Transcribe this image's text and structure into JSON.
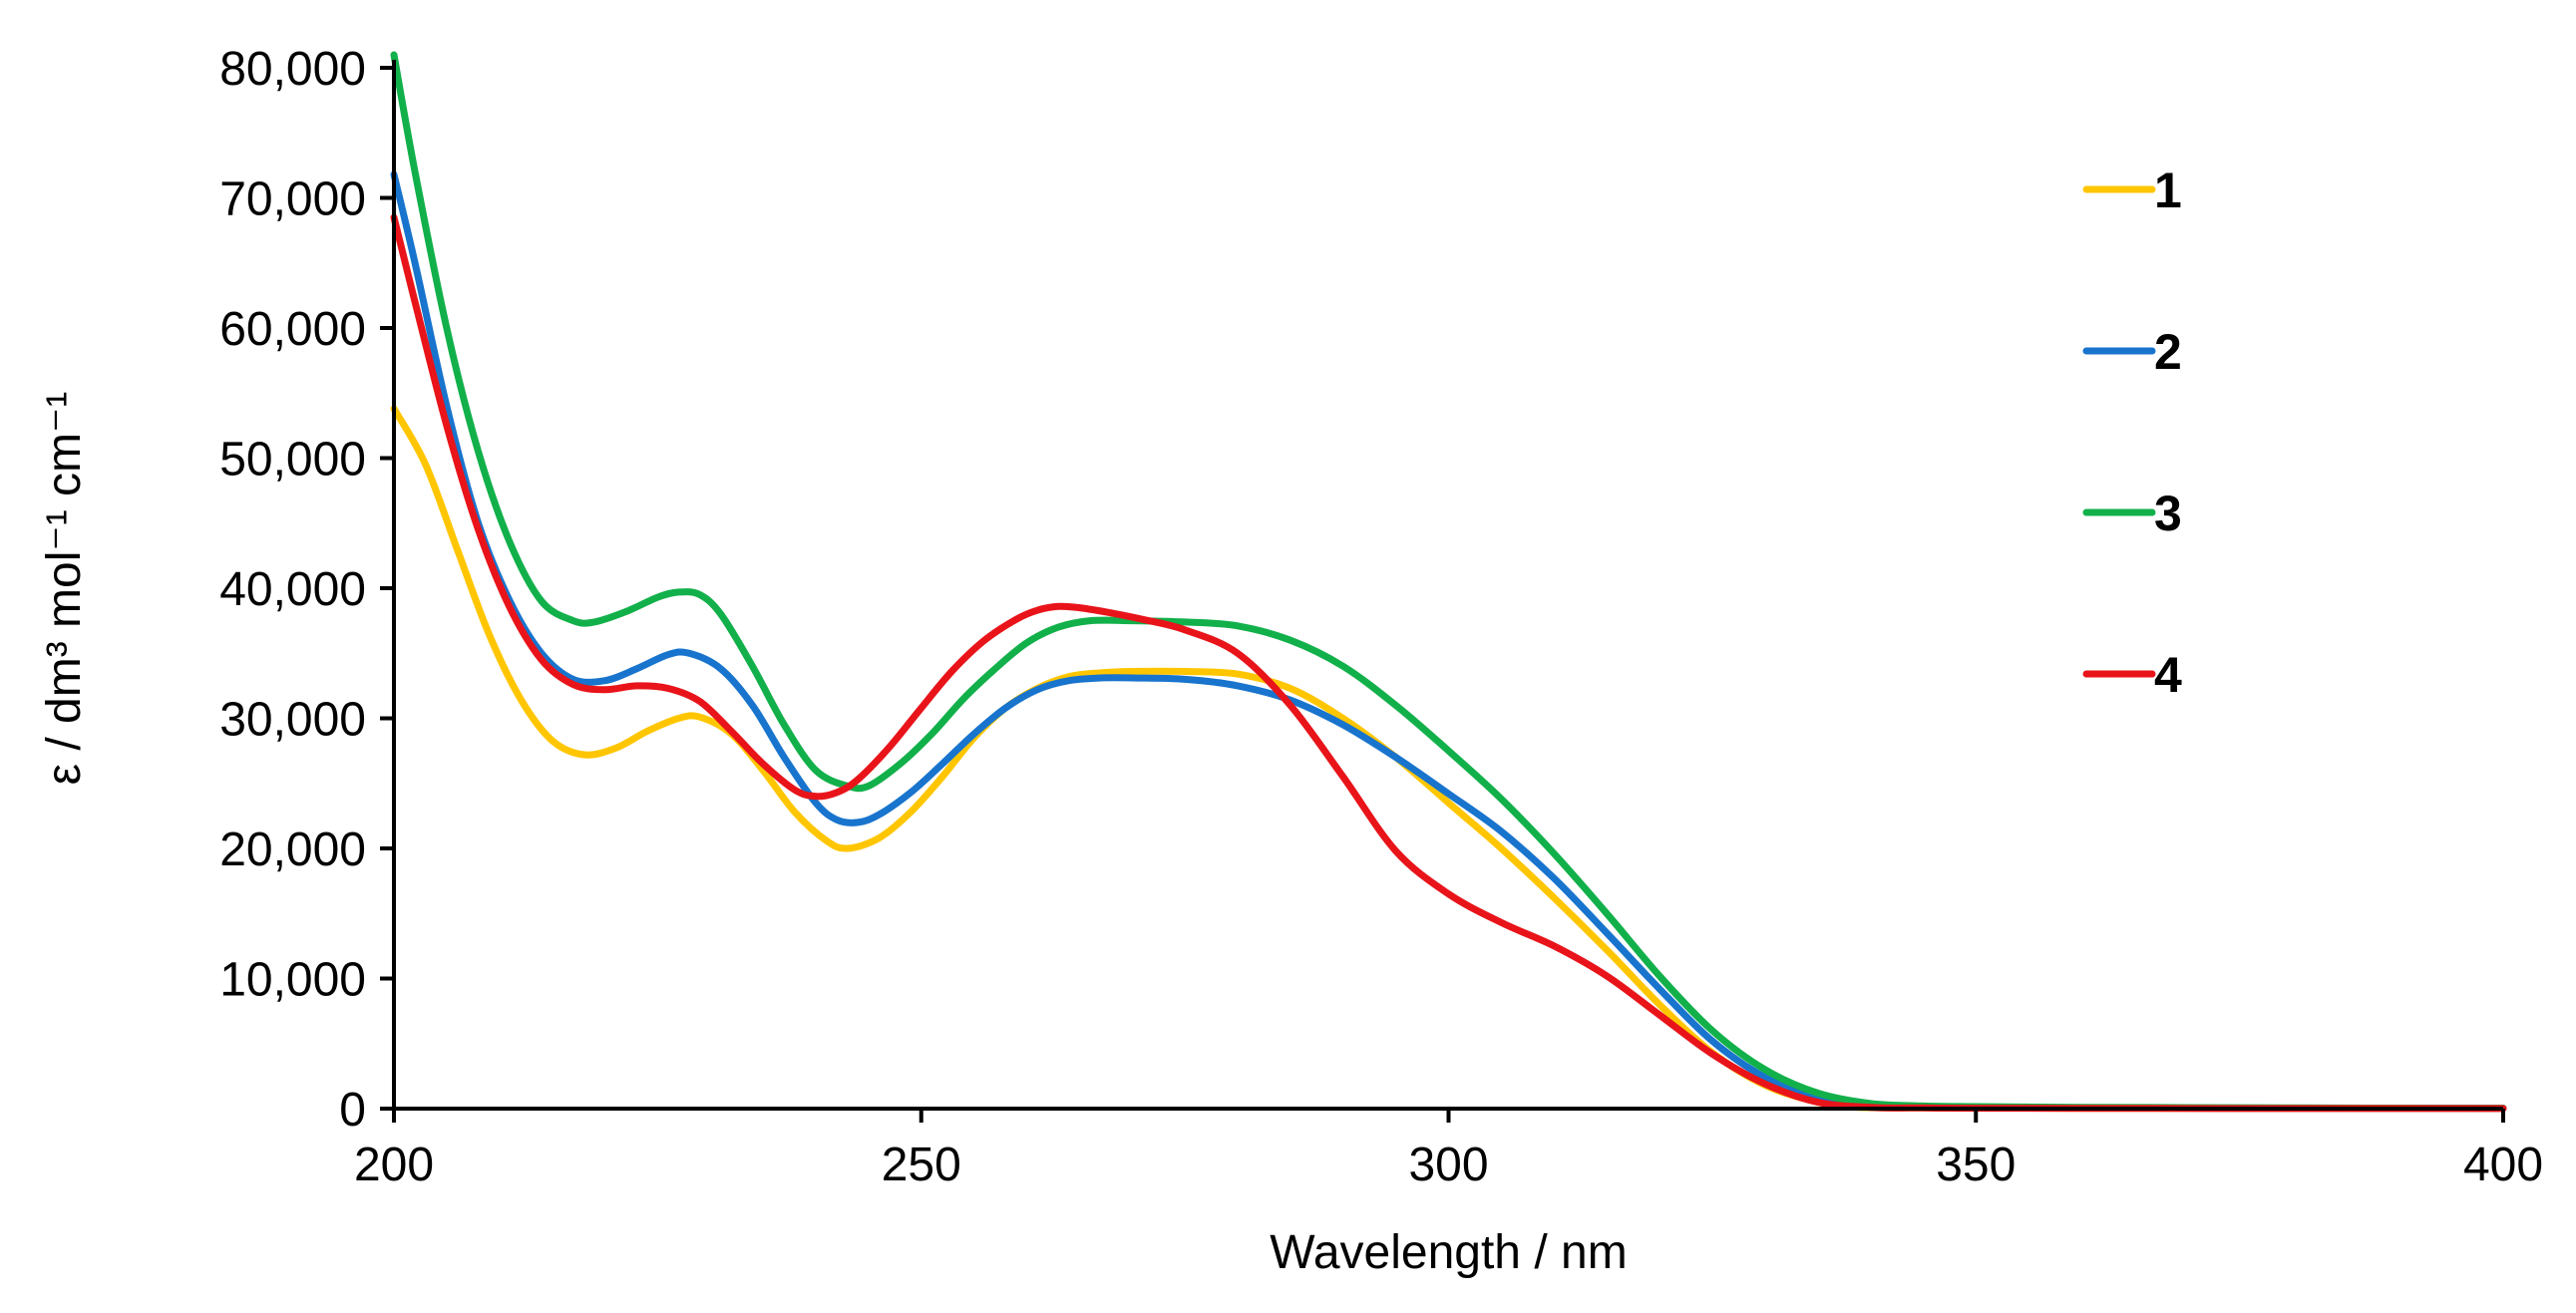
{
  "chart_data": {
    "type": "line",
    "title": "",
    "xlabel": "Wavelength / nm",
    "ylabel": "ε / dm³ mol⁻¹ cm⁻¹",
    "xlim": [
      200,
      400
    ],
    "ylim": [
      0,
      80000
    ],
    "xticks": [
      200,
      250,
      300,
      350,
      400
    ],
    "yticks": [
      0,
      10000,
      20000,
      30000,
      40000,
      50000,
      60000,
      70000,
      80000
    ],
    "xtick_labels": [
      "200",
      "250",
      "300",
      "350",
      "400"
    ],
    "ytick_labels": [
      "0",
      "10,000",
      "20,000",
      "30,000",
      "40,000",
      "50,000",
      "60,000",
      "70,000",
      "80,000"
    ],
    "grid": false,
    "legend_position": "top-right",
    "series": [
      {
        "name": "1",
        "color": "#FFC600",
        "x": [
          200,
          203,
          206,
          209,
          212,
          215,
          218,
          221,
          224,
          227,
          229,
          232,
          235,
          238,
          241,
          243,
          246,
          249,
          252,
          255,
          258,
          261,
          264,
          267,
          270,
          275,
          280,
          285,
          290,
          295,
          300,
          305,
          310,
          315,
          320,
          325,
          330,
          335,
          338,
          340,
          345,
          350,
          360,
          380,
          400
        ],
        "y": [
          53800,
          49500,
          43000,
          36500,
          31500,
          28300,
          27200,
          27700,
          29000,
          30000,
          30100,
          28800,
          26000,
          22800,
          20600,
          20000,
          20800,
          22800,
          25500,
          28500,
          30800,
          32300,
          33200,
          33500,
          33600,
          33600,
          33400,
          32300,
          30000,
          27000,
          23500,
          20000,
          16200,
          12200,
          8000,
          4300,
          1800,
          500,
          150,
          80,
          50,
          40,
          30,
          30,
          30
        ]
      },
      {
        "name": "2",
        "color": "#1874CD",
        "x": [
          200,
          202,
          205,
          208,
          211,
          214,
          217,
          220,
          223,
          226,
          228,
          231,
          234,
          237,
          240,
          242,
          244,
          246,
          249,
          252,
          255,
          258,
          261,
          264,
          267,
          270,
          275,
          280,
          285,
          290,
          295,
          300,
          305,
          310,
          315,
          320,
          325,
          330,
          335,
          340,
          345,
          350,
          360,
          380,
          400
        ],
        "y": [
          71800,
          65000,
          54000,
          45000,
          39000,
          35000,
          33000,
          32900,
          33800,
          34900,
          35000,
          33800,
          31000,
          27000,
          23500,
          22200,
          22000,
          22600,
          24300,
          26500,
          28800,
          30800,
          32200,
          32900,
          33100,
          33100,
          33000,
          32500,
          31400,
          29500,
          27000,
          24200,
          21300,
          17700,
          13500,
          9200,
          5200,
          2400,
          800,
          200,
          100,
          80,
          50,
          40,
          30
        ]
      },
      {
        "name": "3",
        "color": "#12B04A",
        "x": [
          200,
          202,
          205,
          208,
          211,
          214,
          217,
          219,
          222,
          225,
          227,
          229,
          231,
          234,
          237,
          240,
          243,
          245,
          248,
          251,
          254,
          257,
          260,
          263,
          266,
          270,
          275,
          280,
          285,
          290,
          295,
          300,
          305,
          310,
          315,
          320,
          325,
          330,
          335,
          340,
          345,
          350,
          360,
          380,
          400
        ],
        "y": [
          81000,
          72000,
          60000,
          50500,
          43500,
          39000,
          37500,
          37400,
          38200,
          39300,
          39700,
          39500,
          38000,
          34000,
          29500,
          26000,
          24800,
          24800,
          26500,
          28800,
          31500,
          33800,
          35800,
          37000,
          37500,
          37500,
          37400,
          37100,
          36000,
          34000,
          31000,
          27500,
          23800,
          19600,
          15000,
          10200,
          6000,
          3000,
          1200,
          400,
          200,
          150,
          100,
          50,
          30
        ]
      },
      {
        "name": "4",
        "color": "#E8141A",
        "x": [
          200,
          202,
          205,
          208,
          211,
          214,
          217,
          220,
          223,
          226,
          229,
          232,
          235,
          238,
          240,
          242,
          244,
          247,
          250,
          253,
          256,
          259,
          261,
          263,
          265,
          268,
          271,
          275,
          280,
          285,
          290,
          295,
          300,
          305,
          310,
          315,
          320,
          325,
          330,
          335,
          340,
          345,
          350,
          360,
          380,
          400
        ],
        "y": [
          68500,
          62000,
          52500,
          44500,
          38500,
          34500,
          32600,
          32200,
          32500,
          32300,
          31300,
          29000,
          26500,
          24500,
          24000,
          24300,
          25300,
          27800,
          30800,
          33700,
          36000,
          37600,
          38300,
          38600,
          38500,
          38100,
          37600,
          36800,
          35000,
          31000,
          25500,
          19800,
          16500,
          14300,
          12500,
          10200,
          7200,
          4200,
          1900,
          500,
          100,
          50,
          30,
          20,
          10,
          10
        ]
      }
    ]
  }
}
